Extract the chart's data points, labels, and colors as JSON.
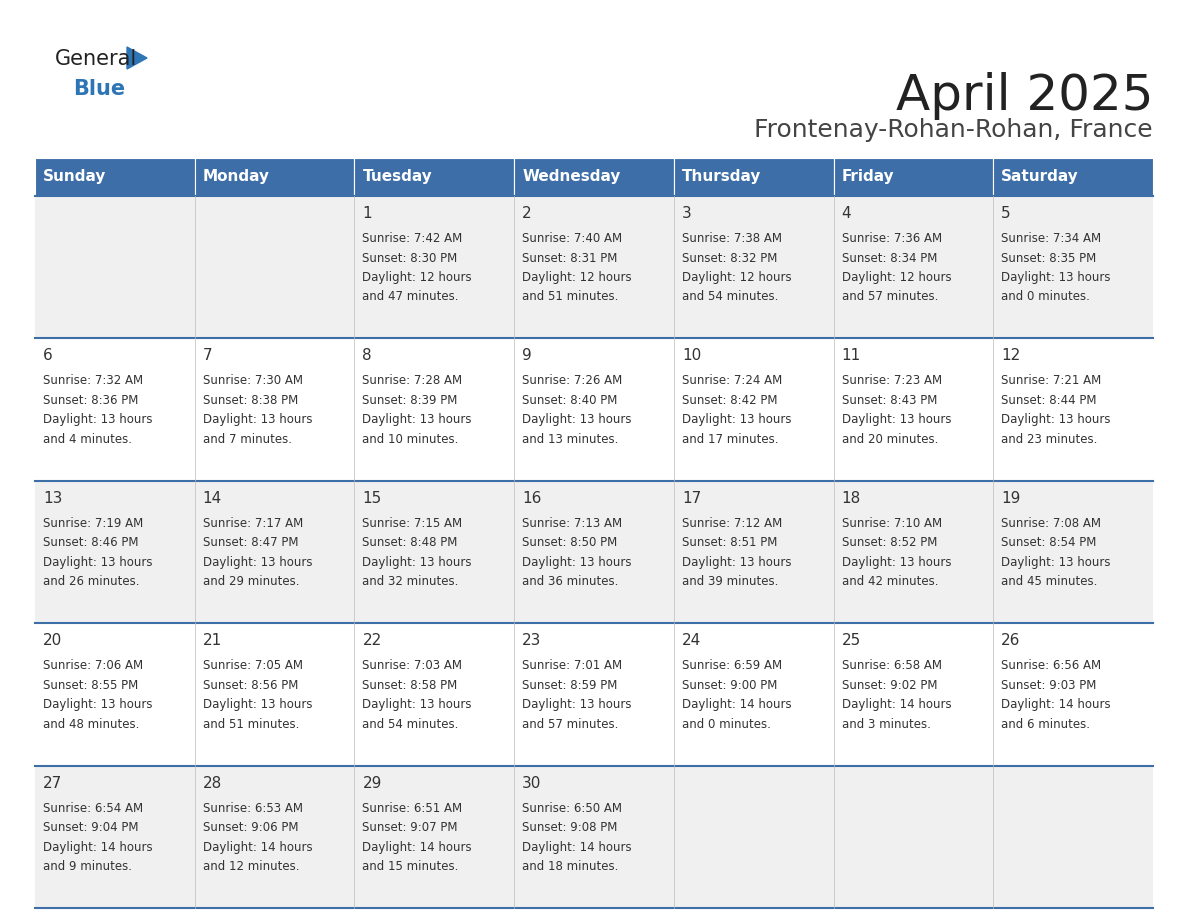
{
  "title": "April 2025",
  "subtitle": "Frontenay-Rohan-Rohan, France",
  "days_of_week": [
    "Sunday",
    "Monday",
    "Tuesday",
    "Wednesday",
    "Thursday",
    "Friday",
    "Saturday"
  ],
  "header_bg": "#3D6EA8",
  "header_text": "#FFFFFF",
  "row_bg_odd": "#F0F0F0",
  "row_bg_even": "#FFFFFF",
  "cell_text_color": "#333333",
  "day_num_color": "#333333",
  "separator_color": "#3D6EA8",
  "title_color": "#222222",
  "subtitle_color": "#444444",
  "logo_general_color": "#222222",
  "logo_blue_color": "#2E75B6",
  "logo_triangle_color": "#2E75B6",
  "weeks": [
    [
      {
        "day": "",
        "info": ""
      },
      {
        "day": "",
        "info": ""
      },
      {
        "day": "1",
        "info": "Sunrise: 7:42 AM\nSunset: 8:30 PM\nDaylight: 12 hours\nand 47 minutes."
      },
      {
        "day": "2",
        "info": "Sunrise: 7:40 AM\nSunset: 8:31 PM\nDaylight: 12 hours\nand 51 minutes."
      },
      {
        "day": "3",
        "info": "Sunrise: 7:38 AM\nSunset: 8:32 PM\nDaylight: 12 hours\nand 54 minutes."
      },
      {
        "day": "4",
        "info": "Sunrise: 7:36 AM\nSunset: 8:34 PM\nDaylight: 12 hours\nand 57 minutes."
      },
      {
        "day": "5",
        "info": "Sunrise: 7:34 AM\nSunset: 8:35 PM\nDaylight: 13 hours\nand 0 minutes."
      }
    ],
    [
      {
        "day": "6",
        "info": "Sunrise: 7:32 AM\nSunset: 8:36 PM\nDaylight: 13 hours\nand 4 minutes."
      },
      {
        "day": "7",
        "info": "Sunrise: 7:30 AM\nSunset: 8:38 PM\nDaylight: 13 hours\nand 7 minutes."
      },
      {
        "day": "8",
        "info": "Sunrise: 7:28 AM\nSunset: 8:39 PM\nDaylight: 13 hours\nand 10 minutes."
      },
      {
        "day": "9",
        "info": "Sunrise: 7:26 AM\nSunset: 8:40 PM\nDaylight: 13 hours\nand 13 minutes."
      },
      {
        "day": "10",
        "info": "Sunrise: 7:24 AM\nSunset: 8:42 PM\nDaylight: 13 hours\nand 17 minutes."
      },
      {
        "day": "11",
        "info": "Sunrise: 7:23 AM\nSunset: 8:43 PM\nDaylight: 13 hours\nand 20 minutes."
      },
      {
        "day": "12",
        "info": "Sunrise: 7:21 AM\nSunset: 8:44 PM\nDaylight: 13 hours\nand 23 minutes."
      }
    ],
    [
      {
        "day": "13",
        "info": "Sunrise: 7:19 AM\nSunset: 8:46 PM\nDaylight: 13 hours\nand 26 minutes."
      },
      {
        "day": "14",
        "info": "Sunrise: 7:17 AM\nSunset: 8:47 PM\nDaylight: 13 hours\nand 29 minutes."
      },
      {
        "day": "15",
        "info": "Sunrise: 7:15 AM\nSunset: 8:48 PM\nDaylight: 13 hours\nand 32 minutes."
      },
      {
        "day": "16",
        "info": "Sunrise: 7:13 AM\nSunset: 8:50 PM\nDaylight: 13 hours\nand 36 minutes."
      },
      {
        "day": "17",
        "info": "Sunrise: 7:12 AM\nSunset: 8:51 PM\nDaylight: 13 hours\nand 39 minutes."
      },
      {
        "day": "18",
        "info": "Sunrise: 7:10 AM\nSunset: 8:52 PM\nDaylight: 13 hours\nand 42 minutes."
      },
      {
        "day": "19",
        "info": "Sunrise: 7:08 AM\nSunset: 8:54 PM\nDaylight: 13 hours\nand 45 minutes."
      }
    ],
    [
      {
        "day": "20",
        "info": "Sunrise: 7:06 AM\nSunset: 8:55 PM\nDaylight: 13 hours\nand 48 minutes."
      },
      {
        "day": "21",
        "info": "Sunrise: 7:05 AM\nSunset: 8:56 PM\nDaylight: 13 hours\nand 51 minutes."
      },
      {
        "day": "22",
        "info": "Sunrise: 7:03 AM\nSunset: 8:58 PM\nDaylight: 13 hours\nand 54 minutes."
      },
      {
        "day": "23",
        "info": "Sunrise: 7:01 AM\nSunset: 8:59 PM\nDaylight: 13 hours\nand 57 minutes."
      },
      {
        "day": "24",
        "info": "Sunrise: 6:59 AM\nSunset: 9:00 PM\nDaylight: 14 hours\nand 0 minutes."
      },
      {
        "day": "25",
        "info": "Sunrise: 6:58 AM\nSunset: 9:02 PM\nDaylight: 14 hours\nand 3 minutes."
      },
      {
        "day": "26",
        "info": "Sunrise: 6:56 AM\nSunset: 9:03 PM\nDaylight: 14 hours\nand 6 minutes."
      }
    ],
    [
      {
        "day": "27",
        "info": "Sunrise: 6:54 AM\nSunset: 9:04 PM\nDaylight: 14 hours\nand 9 minutes."
      },
      {
        "day": "28",
        "info": "Sunrise: 6:53 AM\nSunset: 9:06 PM\nDaylight: 14 hours\nand 12 minutes."
      },
      {
        "day": "29",
        "info": "Sunrise: 6:51 AM\nSunset: 9:07 PM\nDaylight: 14 hours\nand 15 minutes."
      },
      {
        "day": "30",
        "info": "Sunrise: 6:50 AM\nSunset: 9:08 PM\nDaylight: 14 hours\nand 18 minutes."
      },
      {
        "day": "",
        "info": ""
      },
      {
        "day": "",
        "info": ""
      },
      {
        "day": "",
        "info": ""
      }
    ]
  ]
}
